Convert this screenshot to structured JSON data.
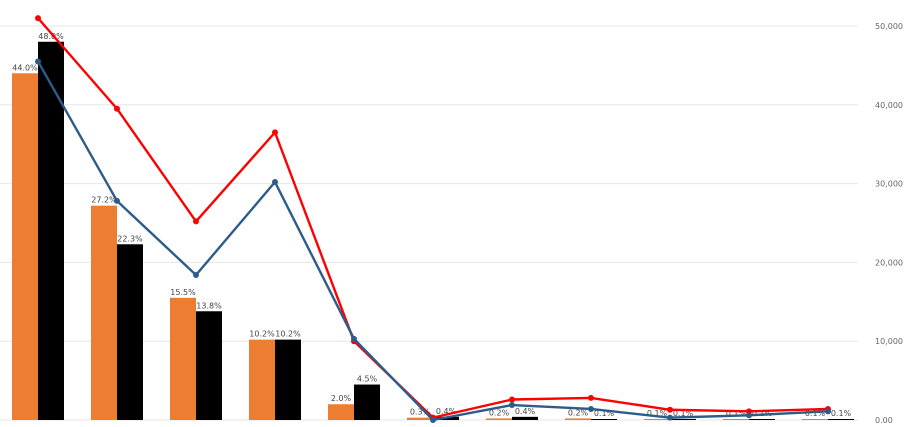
{
  "chart_data": {
    "type": "bar",
    "categories": [
      "",
      "",
      "",
      "",
      "",
      "",
      "",
      "",
      "",
      "",
      ""
    ],
    "bar_series": [
      {
        "color": "#ED7D31",
        "values": [
          44.0,
          27.2,
          15.5,
          10.2,
          2.0,
          0.3,
          0.2,
          0.2,
          0.1,
          0.1,
          0.1
        ],
        "labels": [
          "44.0%",
          "27.2%",
          "15.5%",
          "10.2%",
          "2.0%",
          "0.3%",
          "0.2%",
          "0.2%",
          "0.1%",
          "0.1%",
          "0.1%"
        ]
      },
      {
        "color": "#000000",
        "values": [
          48.0,
          22.3,
          13.8,
          10.2,
          4.5,
          0.4,
          0.4,
          0.1,
          0.1,
          0.1,
          0.1
        ],
        "labels": [
          "48.0%",
          "22.3%",
          "13.8%",
          "10.2%",
          "4.5%",
          "0.4%",
          "0.4%",
          "0.1%",
          "0.1%",
          "0.1%",
          "0.1%"
        ]
      }
    ],
    "line_series": [
      {
        "color": "#FF0000",
        "values": [
          51000,
          39500,
          25200,
          36500,
          10000,
          300,
          2600,
          2800,
          1300,
          1100,
          1400
        ]
      },
      {
        "color": "#2E5C8A",
        "values": [
          45500,
          27800,
          18400,
          30200,
          10300,
          0,
          1900,
          1400,
          300,
          600,
          1100
        ]
      }
    ],
    "y_left_range": [
      0,
      50
    ],
    "y_right_range": [
      0,
      50000
    ],
    "y_right_ticks": [
      "0.00",
      "10,000",
      "20,000",
      "30,000",
      "40,000",
      "50,000"
    ],
    "grid": true,
    "legend": "none"
  }
}
